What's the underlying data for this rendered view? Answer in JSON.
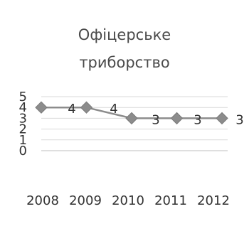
{
  "chart_data": {
    "type": "line",
    "title_lines": [
      "Офіцерське",
      "триборство"
    ],
    "categories": [
      "2008",
      "2009",
      "2010",
      "2011",
      "2012"
    ],
    "series": [
      {
        "values": [
          4,
          4,
          3,
          3,
          3
        ],
        "color": "#8c8c8c",
        "marker": "diamond"
      }
    ],
    "data_labels": [
      "4",
      "4",
      "3",
      "3",
      "3"
    ],
    "ylim": [
      0,
      5
    ],
    "yticks": [
      0,
      1,
      2,
      3,
      4,
      5
    ],
    "grid": true,
    "legend": "none"
  }
}
